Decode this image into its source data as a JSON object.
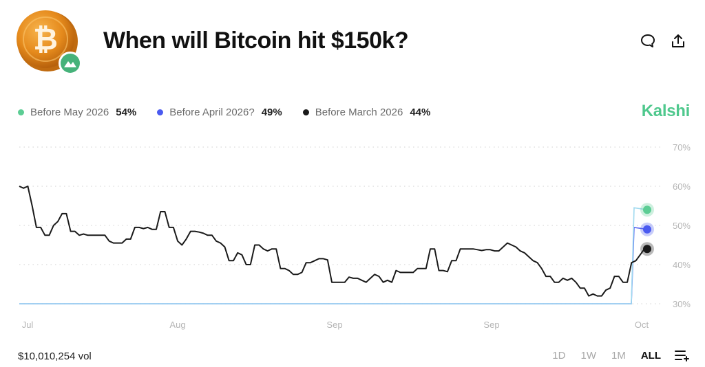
{
  "header": {
    "title": "When will Bitcoin hit $150k?",
    "coin_icon": "bitcoin-coin-icon",
    "badge_icon": "mountain-badge-icon",
    "comment_icon": "comment-icon",
    "share_icon": "share-icon"
  },
  "legend": [
    {
      "label": "Before May 2026",
      "value": "54%",
      "color": "#5ccd94"
    },
    {
      "label": "Before April 2026?",
      "value": "49%",
      "color": "#4a5af0"
    },
    {
      "label": "Before March 2026",
      "value": "44%",
      "color": "#1a1a1a"
    }
  ],
  "brand": "Kalshi",
  "footer": {
    "volume": "$10,010,254 vol",
    "ranges": [
      "1D",
      "1W",
      "1M",
      "ALL"
    ],
    "active_range": "ALL",
    "menu_icon": "list-add-icon"
  },
  "chart_data": {
    "type": "line",
    "title": "",
    "xlabel": "",
    "ylabel": "",
    "x_labels": [
      "Jul",
      "Aug",
      "Sep",
      "Sep",
      "Oct"
    ],
    "y_ticks": [
      "30%",
      "40%",
      "50%",
      "60%",
      "70%"
    ],
    "ylim": [
      30,
      70
    ],
    "grid": true,
    "legend_position": "top-left",
    "series": [
      {
        "name": "Before March 2026",
        "color": "#1a1a1a",
        "values": [
          60,
          59.5,
          60,
          55,
          49.5,
          49.5,
          47.5,
          47.5,
          50,
          51,
          53,
          53,
          48.5,
          48.5,
          47.5,
          47.8,
          47.5,
          47.5,
          47.5,
          47.5,
          47.5,
          46,
          45.5,
          45.5,
          45.5,
          46.5,
          46.5,
          49.5,
          49.5,
          49.2,
          49.5,
          49,
          49,
          53.5,
          53.5,
          49.5,
          49.5,
          46,
          45,
          46.5,
          48.5,
          48.5,
          48.3,
          48,
          47.5,
          47.5,
          46,
          45.5,
          44.5,
          41,
          41,
          43,
          42.5,
          40,
          40,
          45,
          45,
          44,
          43.5,
          44,
          44,
          39,
          39,
          38.5,
          37.5,
          37.5,
          38,
          40.5,
          40.5,
          41,
          41.5,
          41.5,
          41.2,
          35.5,
          35.5,
          35.5,
          35.5,
          36.8,
          36.5,
          36.5,
          36,
          35.5,
          36.5,
          37.5,
          37,
          35.5,
          36,
          35.5,
          38.5,
          38,
          38,
          38,
          38,
          39,
          39,
          39,
          44,
          44,
          38.5,
          38.5,
          38.2,
          41,
          41,
          44,
          44,
          44,
          44,
          43.8,
          43.6,
          43.8,
          43.8,
          43.5,
          43.5,
          44.5,
          45.5,
          45,
          44.5,
          43.5,
          43,
          42,
          41,
          40.5,
          39,
          37,
          37,
          35.5,
          35.5,
          36.5,
          36,
          36.5,
          35.5,
          34,
          34,
          32,
          32.5,
          32,
          32,
          33.5,
          34,
          37,
          37,
          35.5,
          35.5,
          40.5,
          41,
          42.5,
          44
        ],
        "endpoint": 44
      },
      {
        "name": "Before April 2026?",
        "color": "#4a5af0",
        "values": [
          30,
          30,
          49.5,
          49
        ],
        "endpoint": 49
      },
      {
        "name": "Before May 2026",
        "color": "#5ccd94",
        "values": [
          30,
          30,
          54.5,
          54
        ],
        "endpoint": 54
      }
    ]
  }
}
